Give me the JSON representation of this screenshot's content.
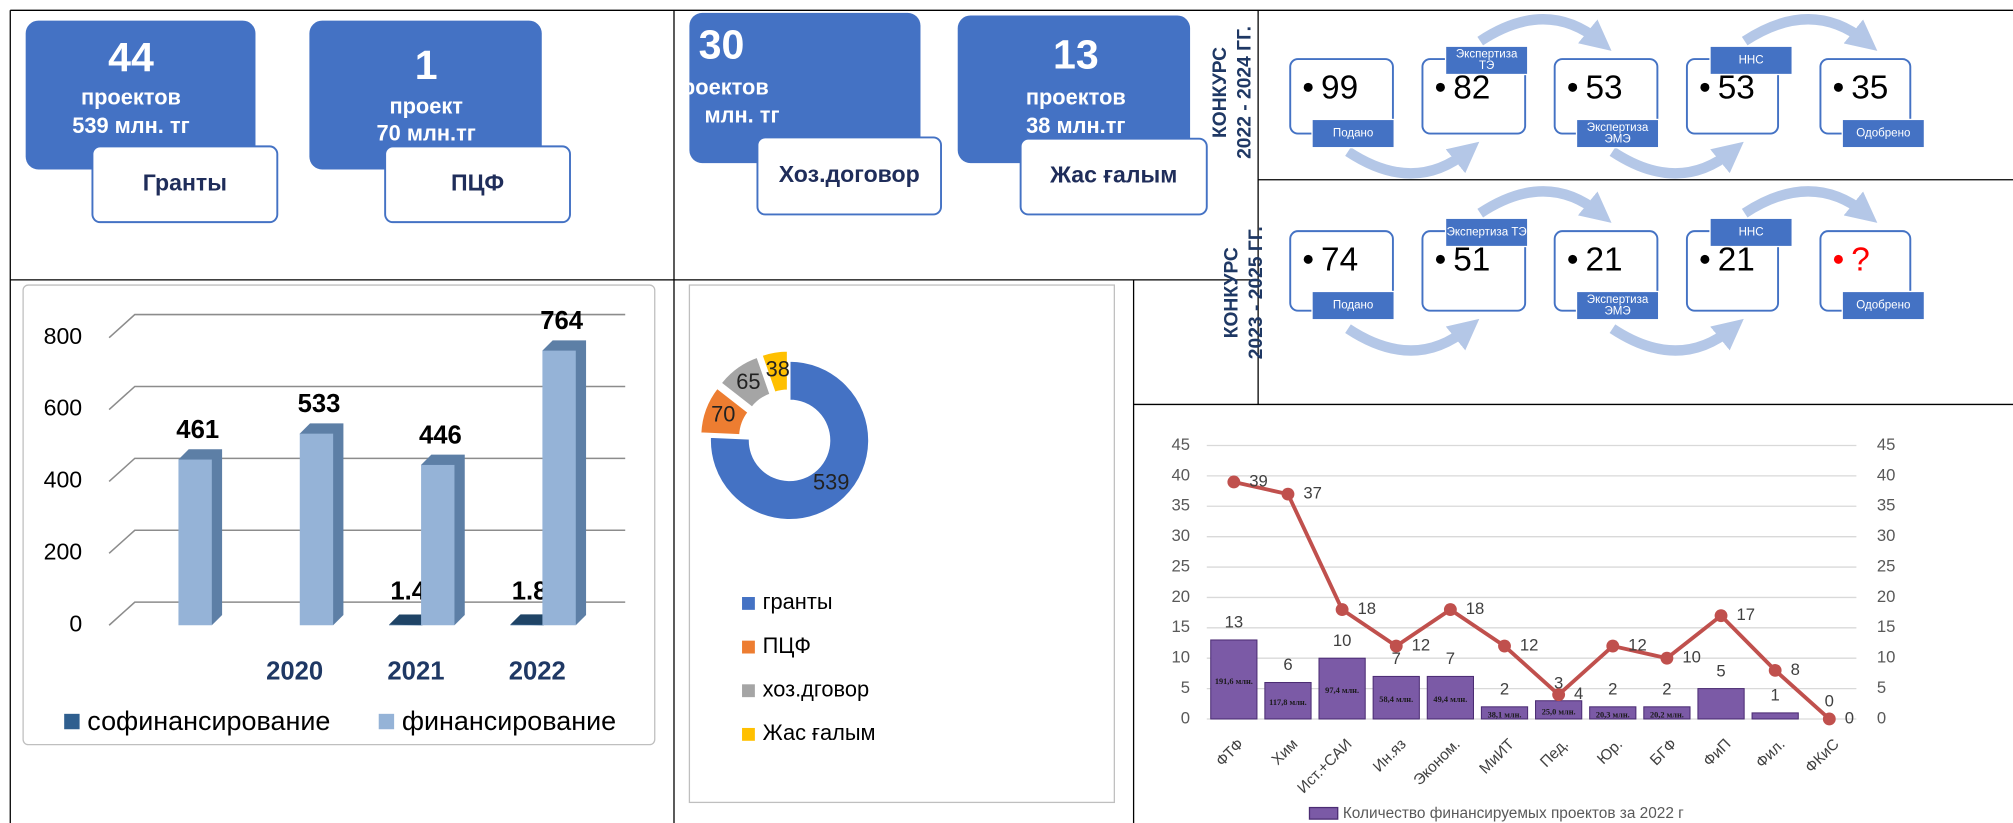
{
  "cards": [
    {
      "number": 44,
      "lines": [
        "проектов",
        "539 млн. тг"
      ],
      "label": "Гранты"
    },
    {
      "number": 1,
      "lines": [
        "проект",
        "70 млн.тг"
      ],
      "label": "ПЦФ"
    },
    {
      "number": 30,
      "lines": [
        "роектов",
        "млн. тг"
      ],
      "label": "Хоз.договор"
    },
    {
      "number": 13,
      "lines": [
        "проектов",
        "38 млн.тг"
      ],
      "label": "Жас ғалым"
    }
  ],
  "flows": [
    {
      "title": [
        "КОНКУРС",
        "2022 - 2024 ГГ."
      ],
      "steps": [
        {
          "value": 99,
          "tag": [
            "Подано"
          ]
        },
        {
          "value": 82,
          "tag": [
            "Экспертиза",
            "ТЭ"
          ]
        },
        {
          "value": 53,
          "tag": [
            "Экспертиза",
            "ЭМЭ"
          ]
        },
        {
          "value": 53,
          "tag": [
            "ННС"
          ]
        },
        {
          "value": 35,
          "tag": [
            "Одобрено"
          ]
        }
      ]
    },
    {
      "title": [
        "КОНКУРС",
        "2023 - 2025 ГГ."
      ],
      "steps": [
        {
          "value": 74,
          "tag": [
            "Подано"
          ]
        },
        {
          "value": 51,
          "tag": [
            "Экспертиза ТЭ"
          ]
        },
        {
          "value": 21,
          "tag": [
            "Экспертиза",
            "ЭМЭ"
          ]
        },
        {
          "value": 21,
          "tag": [
            "ННС"
          ]
        },
        {
          "value": "?",
          "tag": [
            "Одобрено"
          ]
        }
      ]
    }
  ],
  "chart_data": [
    {
      "type": "bar3d",
      "categories": [
        null,
        "2020",
        "2021",
        "2022"
      ],
      "series": [
        {
          "name": "софинансирование",
          "color": "#2f5f8f",
          "values": [
            null,
            null,
            1.4,
            1.8
          ]
        },
        {
          "name": "финансирование",
          "color": "#95b3d7",
          "values": [
            461,
            533,
            446,
            764
          ]
        }
      ],
      "ylim": [
        0,
        800
      ],
      "yticks": [
        0,
        200,
        400,
        600,
        800
      ]
    },
    {
      "type": "donut",
      "categories": [
        "гранты",
        "ПЦФ",
        "хоз.дговор",
        "Жас ғалым"
      ],
      "values": [
        539,
        70,
        65,
        38
      ],
      "colors": [
        "#4472c4",
        "#ed7d31",
        "#a5a5a5",
        "#ffc000"
      ]
    },
    {
      "type": "combo",
      "categories": [
        "ФТФ",
        "Хим",
        "Ист.+САИ",
        "Ин.яз",
        "Эконом.",
        "МиИТ",
        "Пед.",
        "Юр.",
        "БГФ",
        "ФиП",
        "Фил.",
        "ФКиС"
      ],
      "series": [
        {
          "name": "Количество финансируемых проектов за 2022 г",
          "type": "bar",
          "color": "#7b5aa6",
          "values": [
            13,
            6,
            10,
            7,
            7,
            2,
            3,
            2,
            2,
            5,
            1,
            0
          ],
          "amount_labels": [
            "191,6 млн.",
            "117,8 млн.",
            "97,4 млн.",
            "58,4 млн.",
            "49,4 млн.",
            "38,1 млн.",
            "25,0 млн.",
            "20,3 млн.",
            "20,2 млн.",
            null,
            null,
            null
          ]
        },
        {
          "type": "line",
          "axis": "y2",
          "color": "#c0504d",
          "values": [
            39,
            37,
            18,
            12,
            18,
            12,
            4,
            12,
            10,
            17,
            8,
            0
          ]
        }
      ],
      "ylim": [
        0,
        45
      ],
      "yticks": [
        0,
        5,
        10,
        15,
        20,
        25,
        30,
        35,
        40,
        45
      ],
      "y2lim": [
        0,
        45
      ],
      "y2ticks": [
        0,
        5,
        10,
        15,
        20,
        25,
        30,
        35,
        40,
        45
      ]
    }
  ]
}
